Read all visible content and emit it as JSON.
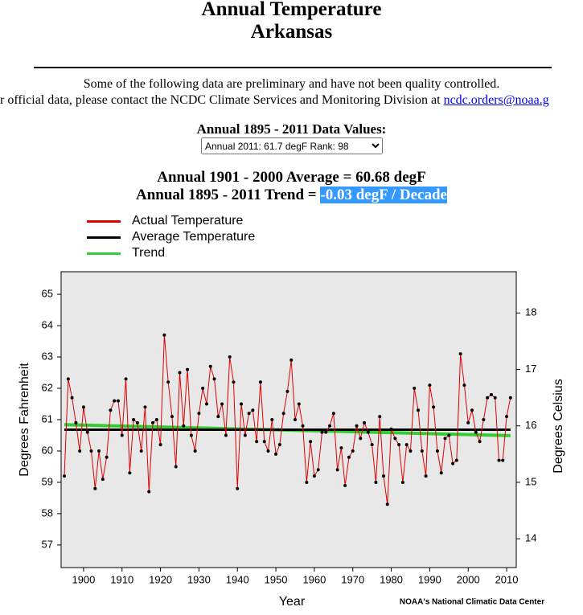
{
  "header": {
    "title": "Annual Temperature",
    "subtitle": "Arkansas"
  },
  "notice": {
    "line1": "Some of the following data are preliminary and have not been quality controlled.",
    "line2": "r official data, please contact the NCDC Climate Services and Monitoring Division at",
    "link": "ncdc.orders@noaa.g"
  },
  "data_values": {
    "label": "Annual 1895 - 2011 Data Values:",
    "selected": "Annual 2011: 61.7 degF  Rank: 98"
  },
  "summary": {
    "average": "Annual 1901 - 2000 Average = 60.68 degF",
    "trend_label": "Annual 1895 - 2011 Trend =",
    "trend_value": "-0.03 degF / Decade"
  },
  "chart_data": {
    "type": "line",
    "x_label": "Year",
    "y_label": "Degrees Fahrenheit",
    "y2_label": "Degrees Celsius",
    "source": "NOAA's National Climatic Data Center",
    "x": [
      1895,
      1896,
      1897,
      1898,
      1899,
      1900,
      1901,
      1902,
      1903,
      1904,
      1905,
      1906,
      1907,
      1908,
      1909,
      1910,
      1911,
      1912,
      1913,
      1914,
      1915,
      1916,
      1917,
      1918,
      1919,
      1920,
      1921,
      1922,
      1923,
      1924,
      1925,
      1926,
      1927,
      1928,
      1929,
      1930,
      1931,
      1932,
      1933,
      1934,
      1935,
      1936,
      1937,
      1938,
      1939,
      1940,
      1941,
      1942,
      1943,
      1944,
      1945,
      1946,
      1947,
      1948,
      1949,
      1950,
      1951,
      1952,
      1953,
      1954,
      1955,
      1956,
      1957,
      1958,
      1959,
      1960,
      1961,
      1962,
      1963,
      1964,
      1965,
      1966,
      1967,
      1968,
      1969,
      1970,
      1971,
      1972,
      1973,
      1974,
      1975,
      1976,
      1977,
      1978,
      1979,
      1980,
      1981,
      1982,
      1983,
      1984,
      1985,
      1986,
      1987,
      1988,
      1989,
      1990,
      1991,
      1992,
      1993,
      1994,
      1995,
      1996,
      1997,
      1998,
      1999,
      2000,
      2001,
      2002,
      2003,
      2004,
      2005,
      2006,
      2007,
      2008,
      2009,
      2010,
      2011
    ],
    "series": [
      {
        "name": "Actual Temperature",
        "color": "#e00000",
        "marker_color": "#000000",
        "values": [
          59.2,
          62.3,
          61.7,
          60.9,
          60.0,
          61.4,
          60.6,
          60.0,
          58.8,
          60.0,
          59.1,
          59.8,
          61.3,
          61.6,
          61.6,
          60.5,
          62.3,
          59.3,
          61.0,
          60.9,
          60.0,
          61.4,
          58.7,
          60.9,
          61.0,
          60.2,
          63.7,
          62.2,
          61.1,
          59.5,
          62.5,
          60.8,
          62.6,
          60.5,
          60.0,
          61.2,
          62.0,
          61.5,
          62.7,
          62.3,
          61.1,
          61.5,
          60.5,
          63.0,
          62.2,
          58.8,
          61.5,
          60.5,
          61.2,
          61.3,
          60.3,
          62.2,
          60.3,
          60.0,
          61.0,
          59.9,
          60.2,
          61.2,
          61.9,
          62.9,
          61.0,
          61.5,
          60.8,
          59.0,
          60.3,
          59.2,
          59.4,
          60.6,
          60.6,
          60.8,
          61.2,
          59.4,
          60.1,
          58.9,
          59.8,
          60.0,
          60.8,
          60.4,
          60.9,
          60.6,
          60.2,
          59.0,
          61.1,
          59.2,
          58.3,
          60.7,
          60.4,
          60.2,
          59.0,
          60.2,
          60.0,
          62.0,
          61.3,
          60.0,
          59.2,
          62.1,
          61.4,
          60.0,
          59.3,
          60.4,
          60.5,
          59.6,
          59.7,
          63.1,
          62.1,
          60.9,
          61.3,
          60.6,
          60.3,
          61.0,
          61.7,
          61.8,
          61.7,
          59.7,
          59.7,
          61.1,
          61.7
        ]
      },
      {
        "name": "Average Temperature",
        "color": "#000000",
        "x": [
          1895,
          2011
        ],
        "values": [
          60.68,
          60.68
        ]
      },
      {
        "name": "Trend",
        "color": "#33cc33",
        "x": [
          1895,
          2011
        ],
        "values": [
          60.84,
          60.49
        ]
      }
    ],
    "xlim": [
      1894.16,
      2012.5
    ],
    "xticks": [
      1900,
      1910,
      1920,
      1930,
      1940,
      1950,
      1960,
      1970,
      1980,
      1990,
      2000,
      2010
    ],
    "ylim": [
      56.28,
      65.72
    ],
    "yticks": [
      57,
      58,
      59,
      60,
      61,
      62,
      63,
      64,
      65
    ],
    "y2lim": [
      13.49,
      18.73
    ],
    "y2ticks": [
      14,
      15,
      16,
      17,
      18
    ],
    "background": "#e8e8e8"
  }
}
